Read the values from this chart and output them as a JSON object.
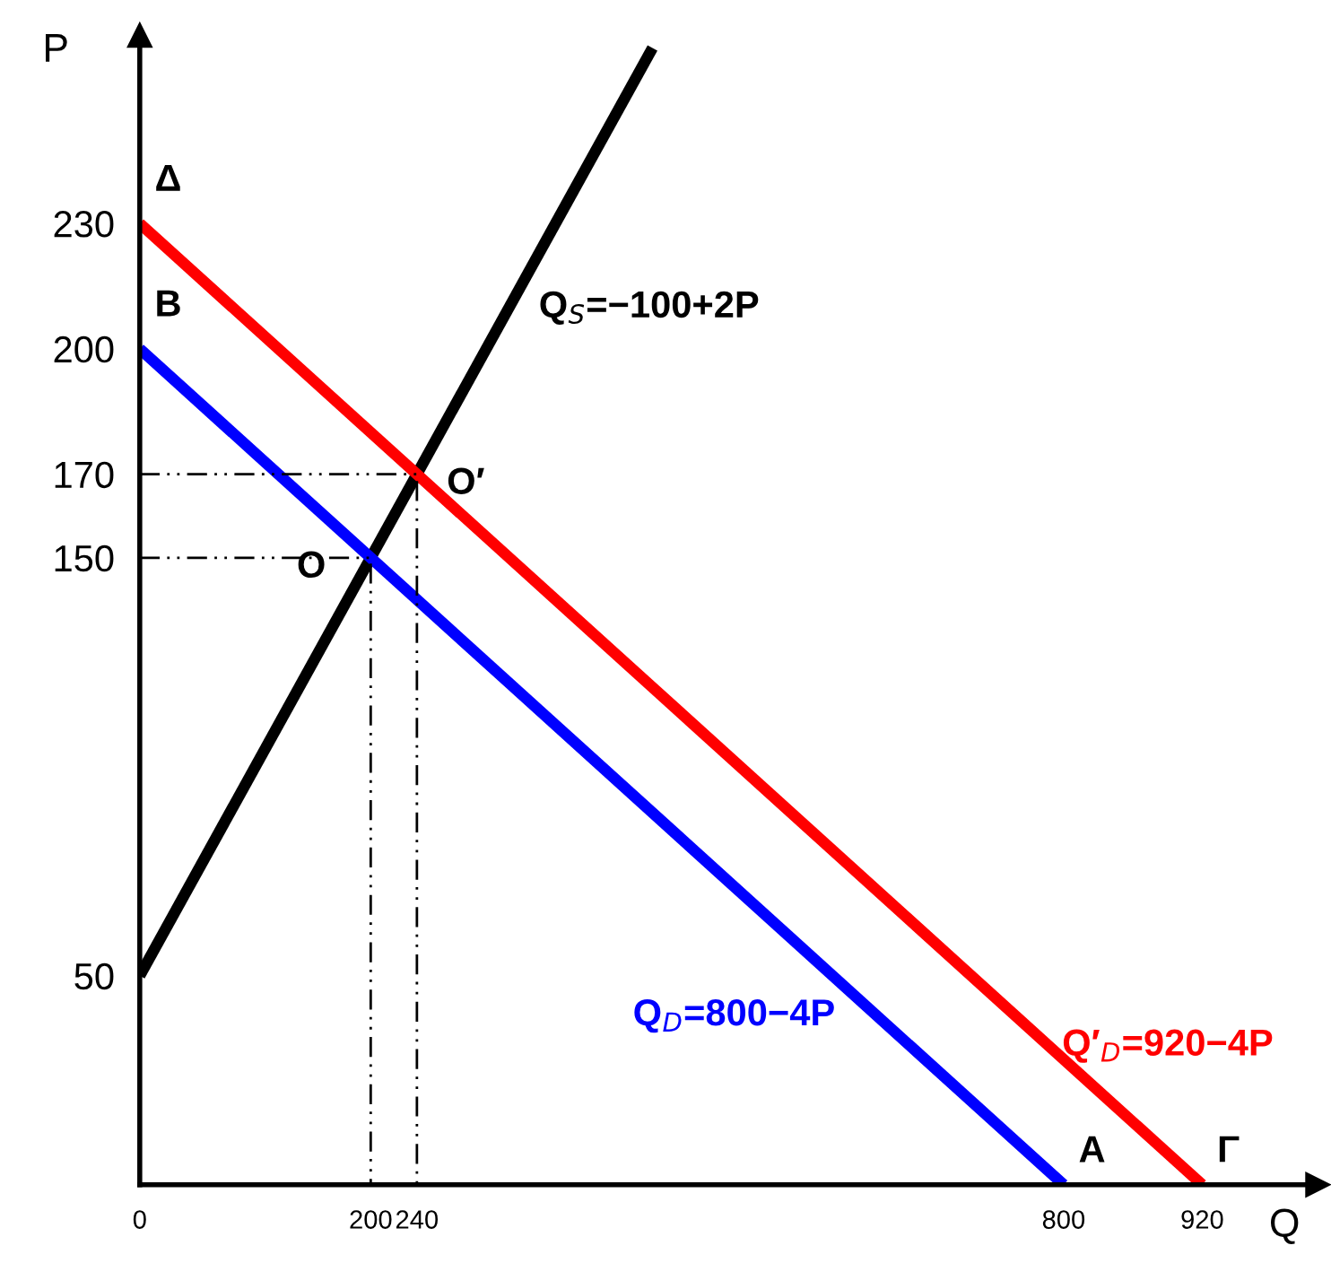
{
  "chart_data": {
    "type": "line",
    "xlabel": "Q",
    "ylabel": "P",
    "xlim": [
      0,
      1020
    ],
    "ylim": [
      0,
      275
    ],
    "xticks": [
      0,
      200,
      240,
      800,
      920
    ],
    "yticks": [
      50,
      150,
      170,
      200,
      230
    ],
    "grid": false,
    "marker": "none",
    "series": [
      {
        "name": "Q$_{S}$=−100+2P",
        "color": "#000000",
        "x": [
          0,
          444
        ],
        "values": [
          50,
          272
        ],
        "line_style": "solid"
      },
      {
        "name": "Q$_{D}$=800−4P",
        "color": "#0000ff",
        "x": [
          0,
          800
        ],
        "values": [
          200,
          0
        ],
        "line_style": "solid"
      },
      {
        "name": "Q′$_{D}$=920−4P",
        "color": "#ff0000",
        "x": [
          0,
          920
        ],
        "values": [
          230,
          0
        ],
        "line_style": "solid"
      },
      {
        "color": "#000000",
        "x": [
          0,
          200,
          200
        ],
        "values": [
          150,
          150,
          0
        ],
        "line_style": "dashed"
      },
      {
        "color": "#000000",
        "x": [
          0,
          240,
          240
        ],
        "values": [
          170,
          170,
          0
        ],
        "line_style": "dashed"
      }
    ],
    "annotations": [
      {
        "text": "Δ",
        "x": 0,
        "y": 230
      },
      {
        "text": "B",
        "x": 0,
        "y": 200
      },
      {
        "text": "O",
        "x": 200,
        "y": 150
      },
      {
        "text": "O′",
        "x": 240,
        "y": 170
      },
      {
        "text": "A",
        "x": 800,
        "y": 0
      },
      {
        "text": "Γ",
        "x": 920,
        "y": 0
      }
    ]
  }
}
